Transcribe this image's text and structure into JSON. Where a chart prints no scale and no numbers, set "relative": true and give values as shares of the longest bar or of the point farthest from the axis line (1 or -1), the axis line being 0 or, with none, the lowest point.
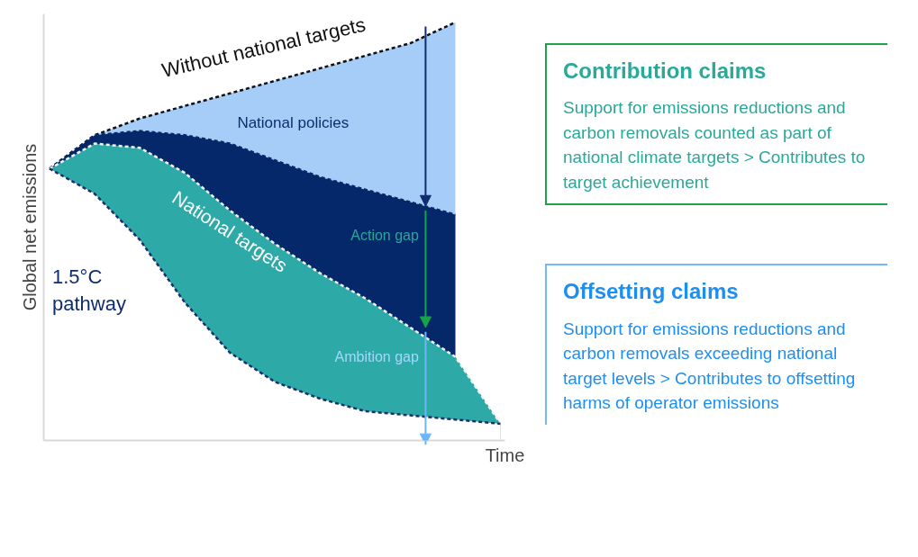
{
  "chart_data": {
    "type": "area",
    "relative": true,
    "xlabel": "Time",
    "ylabel": "Global net emissions",
    "legend": false,
    "line_style": "dashed",
    "categories": [
      null,
      null,
      null,
      null,
      null,
      null,
      null,
      null,
      null,
      null,
      null
    ],
    "series": [
      {
        "name": "Without national targets",
        "color": "#a6cdf8",
        "values": [
          0.65,
          0.73,
          0.77,
          0.8,
          0.83,
          0.86,
          0.89,
          0.92,
          0.95,
          1.0,
          null
        ]
      },
      {
        "name": "National policies",
        "color": "#04286a",
        "values": [
          0.65,
          0.73,
          0.74,
          0.73,
          0.71,
          0.67,
          0.63,
          0.6,
          0.57,
          0.54,
          null
        ]
      },
      {
        "name": "National targets",
        "color": "#2daaa8",
        "values": [
          0.65,
          0.71,
          0.7,
          0.64,
          0.55,
          0.47,
          0.4,
          0.34,
          0.27,
          0.2,
          0.04
        ]
      },
      {
        "name": "1.5°C pathway",
        "color": "#ffffff",
        "values": [
          0.65,
          0.59,
          0.48,
          0.33,
          0.21,
          0.14,
          0.1,
          0.07,
          0.06,
          0.05,
          0.04
        ]
      }
    ],
    "annotations": [
      "Action gap",
      "Ambition gap",
      "Contribution claims",
      "Support for emissions reductions and carbon removals counted as part of national climate targets > Contributes to target achievement",
      "Offsetting claims",
      "Support for emissions reductions and carbon removals exceeding national target levels > Contributes to offsetting harms of operator emissions"
    ]
  }
}
